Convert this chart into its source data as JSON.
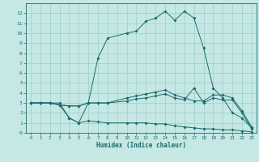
{
  "xlabel": "Humidex (Indice chaleur)",
  "bg_color": "#c5e8e5",
  "grid_color": "#9ecece",
  "line_color": "#1a6b6b",
  "spine_color": "#1a6b6b",
  "xlim": [
    -0.5,
    23.5
  ],
  "ylim": [
    0,
    13
  ],
  "xticks": [
    0,
    1,
    2,
    3,
    4,
    5,
    6,
    7,
    8,
    9,
    10,
    11,
    12,
    13,
    14,
    15,
    16,
    17,
    18,
    19,
    20,
    21,
    22,
    23
  ],
  "yticks": [
    0,
    1,
    2,
    3,
    4,
    5,
    6,
    7,
    8,
    9,
    10,
    11,
    12
  ],
  "series1_x": [
    0,
    1,
    2,
    3,
    4,
    5,
    6,
    7,
    8,
    10,
    11,
    12,
    13,
    14,
    15,
    16,
    17,
    18,
    19,
    20,
    21,
    22,
    23
  ],
  "series1_y": [
    3,
    3,
    3,
    3,
    1.5,
    1.0,
    3.0,
    7.5,
    9.5,
    10.0,
    10.2,
    11.2,
    11.5,
    12.2,
    11.3,
    12.2,
    11.5,
    8.5,
    4.5,
    3.5,
    2.0,
    1.5,
    0.5
  ],
  "series2_x": [
    0,
    1,
    2,
    3,
    4,
    5,
    6,
    7,
    8,
    10,
    11,
    12,
    13,
    14,
    15,
    16,
    17,
    18,
    19,
    20,
    21,
    22,
    23
  ],
  "series2_y": [
    3,
    3,
    3,
    2.8,
    2.7,
    2.7,
    3.0,
    3.0,
    3.0,
    3.2,
    3.4,
    3.5,
    3.7,
    3.9,
    3.5,
    3.3,
    4.5,
    3.0,
    3.5,
    3.3,
    3.3,
    2.0,
    0.4
  ],
  "series3_x": [
    0,
    1,
    2,
    3,
    4,
    5,
    6,
    7,
    8,
    10,
    11,
    12,
    13,
    14,
    15,
    16,
    17,
    18,
    19,
    20,
    21,
    22,
    23
  ],
  "series3_y": [
    3,
    3,
    3,
    2.8,
    2.7,
    2.7,
    3.0,
    3.0,
    3.0,
    3.5,
    3.7,
    3.9,
    4.1,
    4.3,
    3.8,
    3.5,
    3.2,
    3.2,
    3.8,
    3.8,
    3.5,
    2.2,
    0.6
  ],
  "series4_x": [
    0,
    1,
    2,
    3,
    4,
    5,
    6,
    7,
    8,
    10,
    11,
    12,
    13,
    14,
    15,
    16,
    17,
    18,
    19,
    20,
    21,
    22,
    23
  ],
  "series4_y": [
    3,
    3,
    3,
    2.8,
    1.5,
    1.0,
    1.2,
    1.1,
    1.0,
    1.0,
    1.0,
    1.0,
    0.9,
    0.9,
    0.7,
    0.6,
    0.5,
    0.4,
    0.4,
    0.3,
    0.3,
    0.2,
    0.1
  ]
}
